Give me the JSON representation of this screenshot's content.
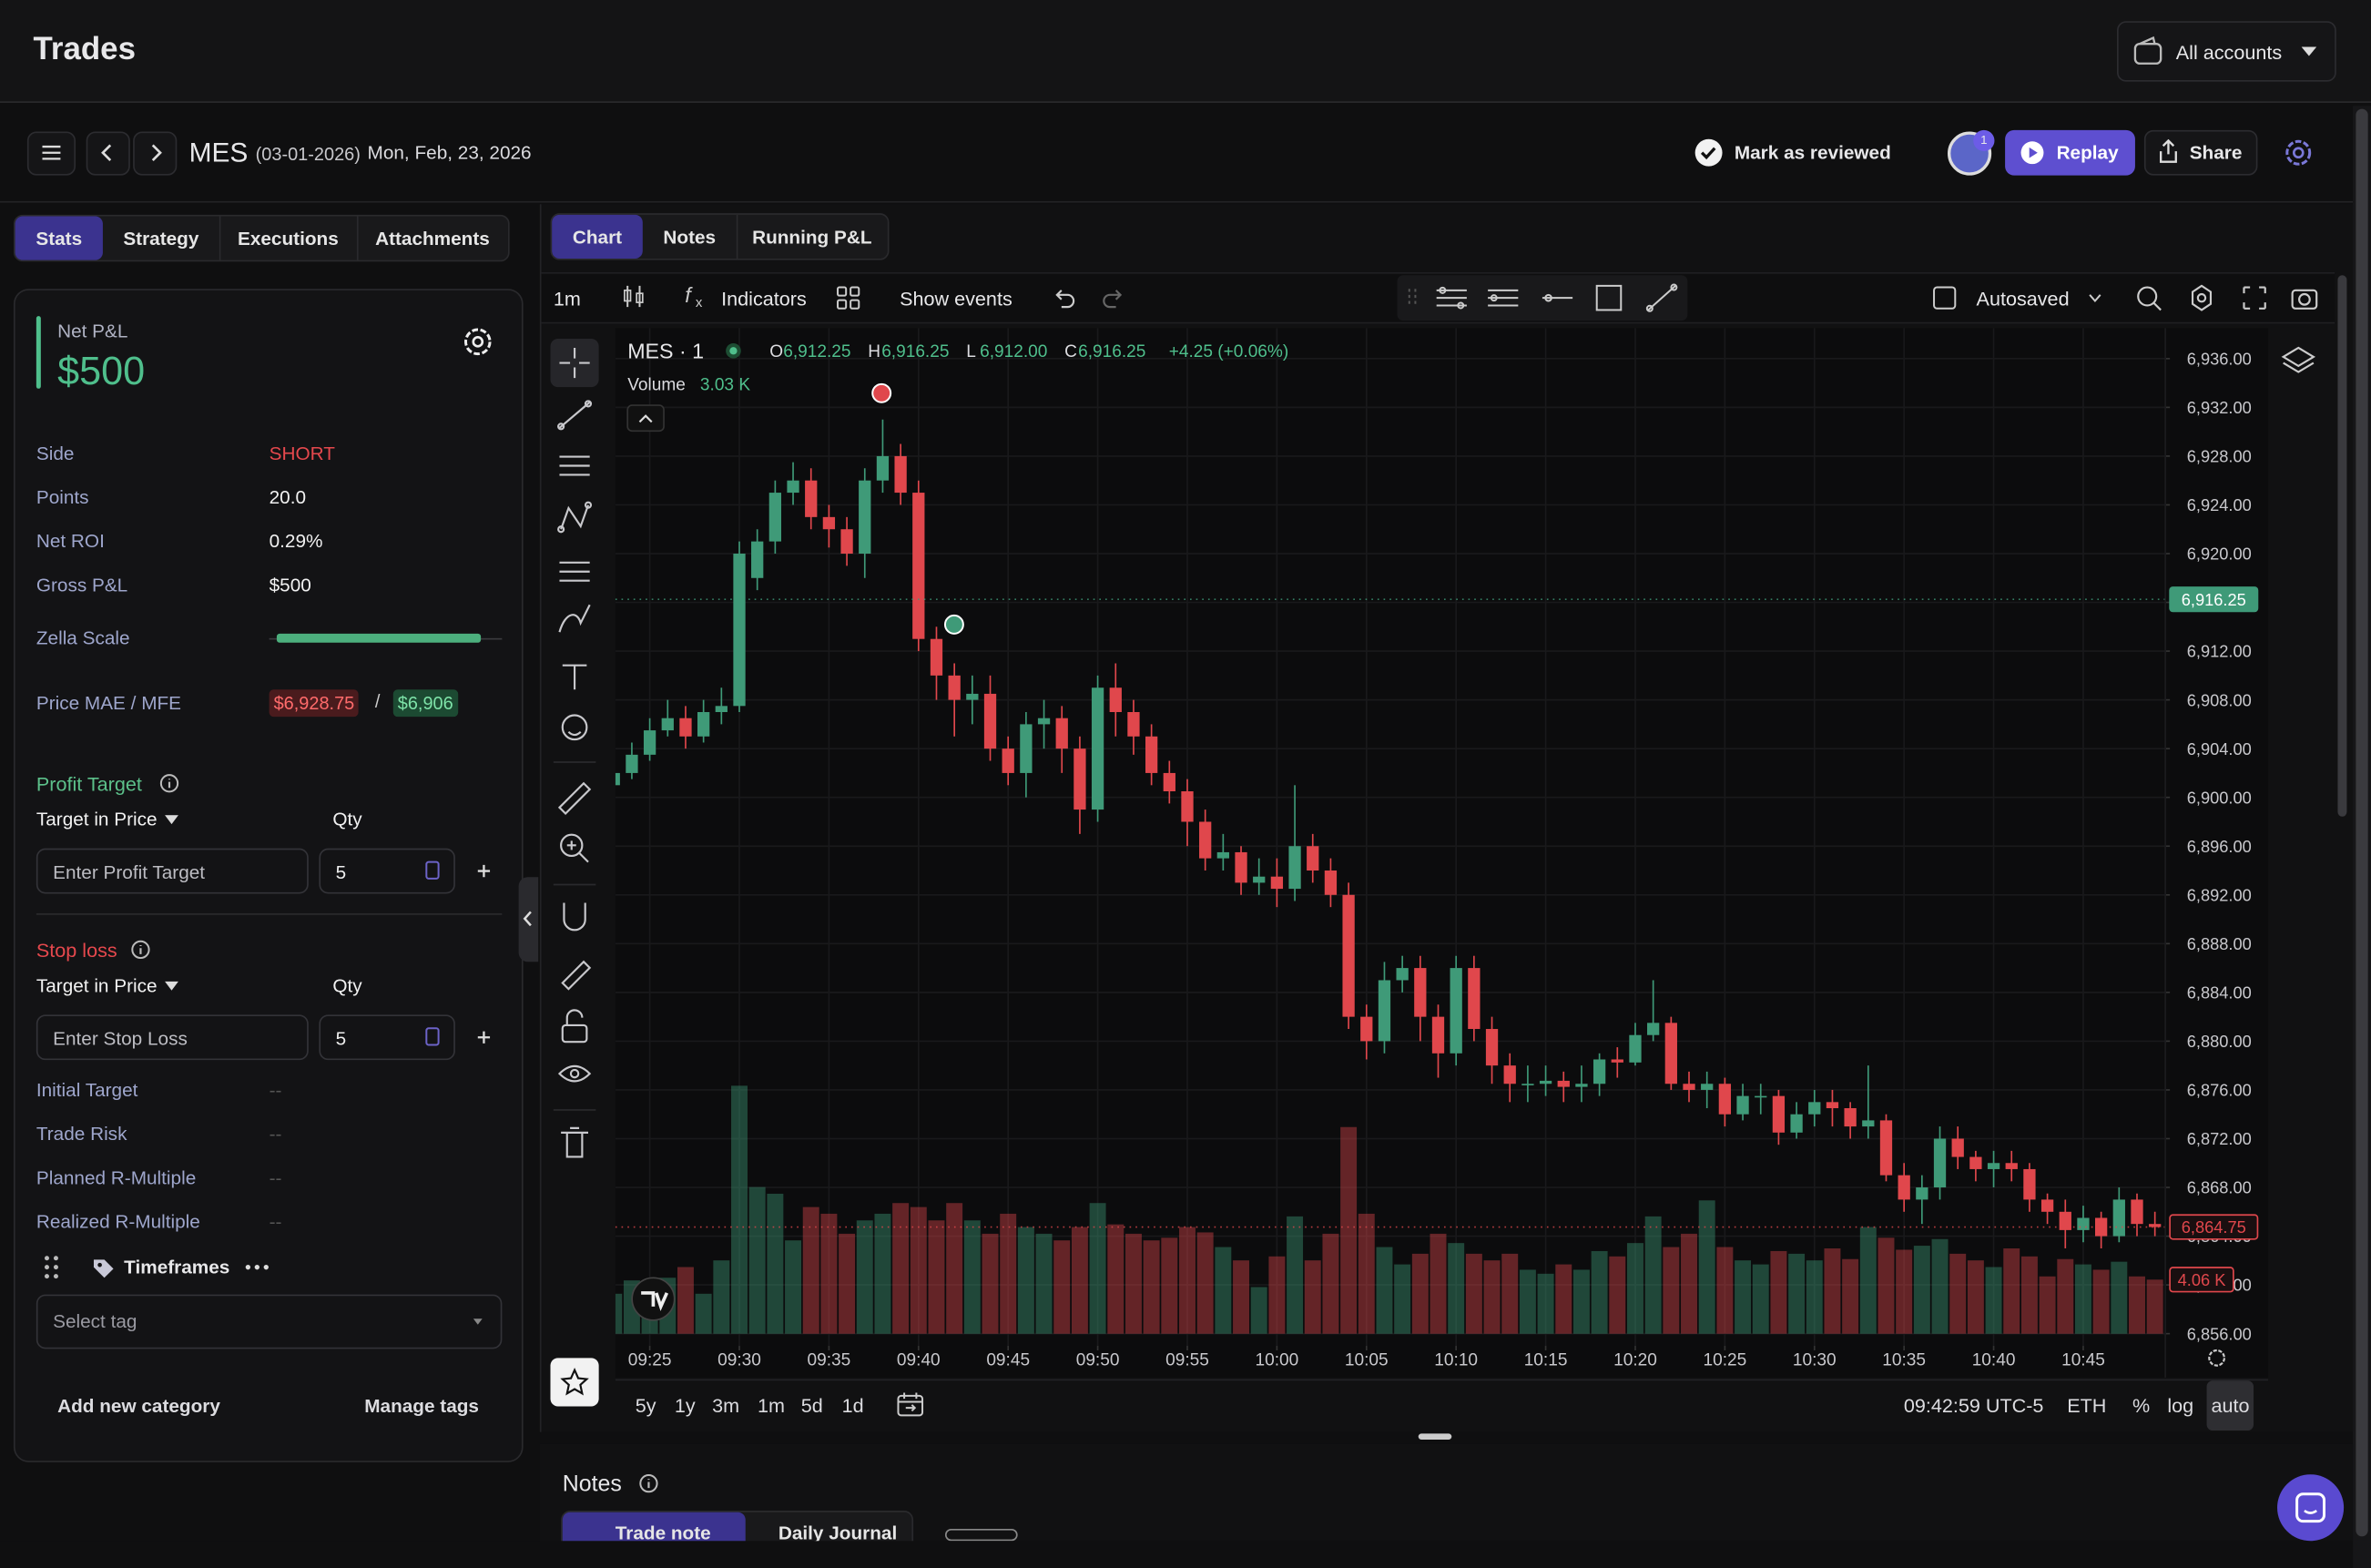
{
  "header": {
    "title": "Trades",
    "accounts": "All accounts"
  },
  "toolbar": {
    "symbol": "MES",
    "contract": "(03-01-2026)",
    "date": "Mon, Feb, 23, 2026",
    "mark_reviewed": "Mark as reviewed",
    "avatar_badge": "1",
    "replay": "Replay",
    "share": "Share"
  },
  "left_tabs": [
    "Stats",
    "Strategy",
    "Executions",
    "Attachments"
  ],
  "stats": {
    "net_pnl_label": "Net P&L",
    "net_pnl": "$500",
    "rows": [
      [
        "Side",
        "SHORT"
      ],
      [
        "Points",
        "20.0"
      ],
      [
        "Net ROI",
        "0.29%"
      ],
      [
        "Gross P&L",
        "$500"
      ]
    ],
    "zella_scale": "Zella Scale",
    "mae_mfe_label": "Price MAE / MFE",
    "mae": "$6,928.75",
    "separator": "/",
    "mfe": "$6,906"
  },
  "profit_target": {
    "title": "Profit Target",
    "target_type": "Target in Price",
    "qty_label": "Qty",
    "placeholder": "Enter Profit Target",
    "qty": "5"
  },
  "stop_loss": {
    "title": "Stop loss",
    "target_type": "Target in Price",
    "qty_label": "Qty",
    "placeholder": "Enter Stop Loss",
    "qty": "5"
  },
  "risk_rows": [
    [
      "Initial Target",
      "--"
    ],
    [
      "Trade Risk",
      "--"
    ],
    [
      "Planned R-Multiple",
      "--"
    ],
    [
      "Realized R-Multiple",
      "--"
    ]
  ],
  "tags": {
    "category": "Timeframes",
    "select": "Select tag",
    "add": "Add new category",
    "manage": "Manage tags"
  },
  "chart_tabs": [
    "Chart",
    "Notes",
    "Running P&L"
  ],
  "chart_toolbar": {
    "interval": "1m",
    "indicators": "Indicators",
    "show_events": "Show events",
    "autosaved": "Autosaved"
  },
  "chart_data": {
    "type": "candlestick",
    "symbol_label": "MES · 1",
    "ohlc_legend": [
      {
        "label": "O",
        "value": "6,912.25"
      },
      {
        "label": "H",
        "value": "6,916.25"
      },
      {
        "label": "L",
        "value": "6,912.00"
      },
      {
        "label": "C",
        "value": "6,916.25"
      }
    ],
    "change": "+4.25 (+0.06%)",
    "volume_label": "Volume",
    "volume_value": "3.03 K",
    "categories": [
      null,
      null,
      "09:25",
      null,
      null,
      null,
      null,
      "09:30",
      null,
      null,
      null,
      null,
      "09:35",
      null,
      null,
      null,
      null,
      "09:40",
      null,
      null,
      null,
      null,
      "09:45",
      null,
      null,
      null,
      null,
      "09:50",
      null,
      null,
      null,
      null,
      "09:55",
      null,
      null,
      null,
      null,
      "10:00",
      null,
      null,
      null,
      null,
      "10:05",
      null,
      null,
      null,
      null,
      "10:10",
      null,
      null,
      null,
      null,
      "10:15",
      null,
      null,
      null,
      null,
      "10:20",
      null,
      null,
      null,
      null,
      "10:25",
      null,
      null,
      null,
      null,
      "10:30",
      null,
      null,
      null,
      null,
      "10:35",
      null,
      null,
      null,
      null,
      "10:40",
      null,
      null,
      null,
      null,
      "10:45",
      null,
      null,
      null,
      null
    ],
    "open": [
      6901,
      6902,
      6903.5,
      6905.5,
      6906.5,
      6905,
      6907,
      6907.5,
      6918,
      6921,
      6925,
      6926,
      6923,
      6922,
      6920,
      6926,
      6928,
      6925,
      6913,
      6910,
      6908,
      6908.5,
      6904,
      6902,
      6906,
      6906.5,
      6904,
      6899,
      6909,
      6907,
      6905,
      6902,
      6900.5,
      6898,
      6895,
      6895.5,
      6893,
      6893.5,
      6892.5,
      6896,
      6894,
      6892,
      6882,
      6880,
      6885,
      6886,
      6882,
      6879,
      6886,
      6881,
      6878,
      6876.5,
      6876.5,
      6876.75,
      6876.25,
      6876.5,
      6878.5,
      6878.25,
      6880.5,
      6881.5,
      6876.5,
      6876,
      6876.5,
      6874,
      6875.5,
      6875.5,
      6872.5,
      6874,
      6875,
      6874.5,
      6873,
      6873.5,
      6869,
      6867,
      6868,
      6872,
      6870.5,
      6869.5,
      6870,
      6869.5,
      6867,
      6866,
      6864.5,
      6865.5,
      6864,
      6867,
      6865
    ],
    "high": [
      6903,
      6904.5,
      6906.5,
      6908,
      6907.5,
      6908,
      6909,
      6921,
      6922,
      6926,
      6927.5,
      6927,
      6924,
      6923,
      6927,
      6931,
      6929,
      6926,
      6914,
      6911,
      6910,
      6910,
      6905,
      6907,
      6908,
      6907.5,
      6905,
      6910,
      6911,
      6908,
      6906,
      6903,
      6901.5,
      6899,
      6897,
      6896,
      6895,
      6895,
      6901,
      6897,
      6895,
      6893,
      6883,
      6886.5,
      6887,
      6887,
      6883,
      6887,
      6887,
      6882,
      6879,
      6878,
      6878,
      6877.5,
      6878,
      6879,
      6879.5,
      6881.5,
      6885,
      6882,
      6877.5,
      6877.5,
      6877,
      6876.5,
      6876.5,
      6876,
      6875,
      6876,
      6876,
      6875,
      6878,
      6874,
      6870,
      6869,
      6873,
      6873,
      6871,
      6871,
      6871,
      6870,
      6867.5,
      6867,
      6866.5,
      6866,
      6868,
      6867.5,
      6866
    ],
    "low": [
      6900.5,
      6901.5,
      6903,
      6905,
      6904,
      6904.5,
      6906,
      6907,
      6917,
      6920,
      6924,
      6922,
      6920.5,
      6919,
      6918,
      6925,
      6924,
      6912,
      6908,
      6905,
      6906,
      6903,
      6901,
      6900,
      6904,
      6902,
      6897,
      6898,
      6905,
      6903.5,
      6901,
      6899.5,
      6896,
      6894,
      6894,
      6892,
      6892,
      6891,
      6891.5,
      6893,
      6891,
      6881,
      6878.5,
      6879,
      6884,
      6880,
      6877,
      6878,
      6880,
      6876.5,
      6875,
      6875,
      6875.5,
      6875,
      6875,
      6875.5,
      6877,
      6878,
      6880,
      6876,
      6875,
      6874.5,
      6873,
      6873.5,
      6874,
      6871.5,
      6872,
      6873,
      6873,
      6872,
      6872,
      6868.5,
      6866,
      6865,
      6867,
      6869.5,
      6868.5,
      6868,
      6868.5,
      6866,
      6865,
      6863,
      6863.5,
      6863,
      6863.5,
      6864,
      6864
    ],
    "close": [
      6902,
      6903.5,
      6905.5,
      6906.5,
      6905,
      6907,
      6907.5,
      6920,
      6921,
      6925,
      6926,
      6923,
      6922,
      6920,
      6926,
      6928,
      6925,
      6913,
      6910,
      6908,
      6908.5,
      6904,
      6902,
      6906,
      6906.5,
      6904,
      6899,
      6909,
      6907,
      6905,
      6902,
      6900.5,
      6898,
      6895,
      6895.5,
      6893,
      6893.5,
      6892.5,
      6896,
      6894,
      6892,
      6882,
      6880,
      6885,
      6886,
      6882,
      6879,
      6886,
      6881,
      6878,
      6876.5,
      6876.5,
      6876.75,
      6876.25,
      6876.5,
      6878.5,
      6878.25,
      6880.5,
      6881.5,
      6876.5,
      6876,
      6876.5,
      6874,
      6875.5,
      6875.5,
      6872.5,
      6874,
      6875,
      6874.5,
      6873,
      6873.5,
      6869,
      6867,
      6868,
      6872,
      6870.5,
      6869.5,
      6870,
      6869.5,
      6867,
      6866,
      6864.5,
      6865.5,
      6864,
      6867,
      6865,
      6864.75
    ],
    "volume": [
      3000,
      4000,
      3500,
      4200,
      5000,
      3000,
      5500,
      18600,
      11000,
      10500,
      7000,
      9500,
      9000,
      7500,
      8500,
      9000,
      9800,
      9500,
      8500,
      9800,
      8500,
      7500,
      9000,
      8000,
      7500,
      7000,
      8000,
      9800,
      8200,
      7500,
      7000,
      7200,
      8000,
      7600,
      6500,
      5500,
      3500,
      5800,
      8800,
      5500,
      7500,
      15500,
      9000,
      6500,
      5200,
      6000,
      7500,
      6800,
      6000,
      5500,
      6000,
      4800,
      4500,
      5200,
      4800,
      6200,
      5800,
      6800,
      8800,
      6500,
      7500,
      10000,
      6500,
      5500,
      5200,
      6200,
      6000,
      5500,
      6400,
      5600,
      8000,
      7200,
      6300,
      6600,
      7100,
      6000,
      5500,
      5000,
      6400,
      5800,
      4300,
      5600,
      5200,
      4800,
      5400,
      4300,
      4060
    ],
    "up_color": "#3f9a78",
    "down_color": "#e0474c",
    "ylim": [
      6855,
      6938.5
    ],
    "yticks": [
      {
        "value": 6856,
        "label": "6,856.00"
      },
      {
        "value": 6860,
        "label": "6,860.00"
      },
      {
        "value": 6864,
        "label": "6,864.00"
      },
      {
        "value": 6868,
        "label": "6,868.00"
      },
      {
        "value": 6872,
        "label": "6,872.00"
      },
      {
        "value": 6876,
        "label": "6,876.00"
      },
      {
        "value": 6880,
        "label": "6,880.00"
      },
      {
        "value": 6884,
        "label": "6,884.00"
      },
      {
        "value": 6888,
        "label": "6,888.00"
      },
      {
        "value": 6892,
        "label": "6,892.00"
      },
      {
        "value": 6896,
        "label": "6,896.00"
      },
      {
        "value": 6900,
        "label": "6,900.00"
      },
      {
        "value": 6904,
        "label": "6,904.00"
      },
      {
        "value": 6908,
        "label": "6,908.00"
      },
      {
        "value": 6912,
        "label": "6,912.00"
      },
      {
        "value": 6916,
        "label": "6,916.00"
      },
      {
        "value": 6920,
        "label": "6,920.00"
      },
      {
        "value": 6924,
        "label": "6,924.00"
      },
      {
        "value": 6928,
        "label": "6,928.00"
      },
      {
        "value": 6932,
        "label": "6,932.00"
      },
      {
        "value": 6936,
        "label": "6,936.00"
      }
    ],
    "grid": true,
    "price_badges": [
      {
        "value": 6916.25,
        "label": "6,916.25",
        "color": "#3f9a78"
      },
      {
        "value": 6864.75,
        "label": "6,864.75",
        "color": "#e0474c"
      }
    ],
    "volume_badge": {
      "value": 4060,
      "label": "4.06 K"
    },
    "ranges": [
      "5y",
      "1y",
      "3m",
      "1m",
      "5d",
      "1d"
    ],
    "clock": "09:42:59 UTC-5",
    "session": "ETH",
    "scale_modes": [
      "%",
      "log",
      "auto"
    ]
  },
  "notes": {
    "title": "Notes",
    "tabs": [
      "Trade note",
      "Daily Journal"
    ]
  }
}
